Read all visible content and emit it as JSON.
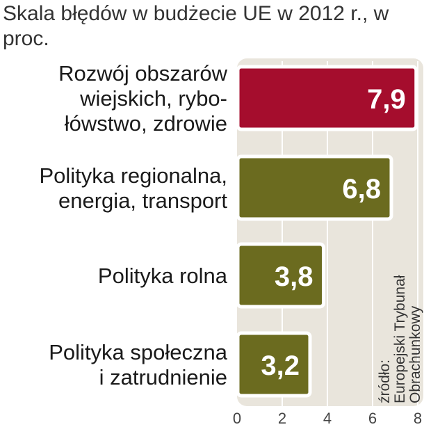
{
  "chart_data": {
    "type": "bar",
    "orientation": "horizontal",
    "title": "Skala błędów w budżecie UE w 2012 r., w proc.",
    "categories": [
      [
        "Rozwój obszarów",
        "wiejskich, rybo-",
        "łówstwo, zdrowie"
      ],
      [
        "Polityka regionalna,",
        "energia, transport"
      ],
      [
        "Polityka rolna"
      ],
      [
        "Polityka społeczna",
        "i zatrudnienie"
      ]
    ],
    "values": [
      7.9,
      6.8,
      3.8,
      3.2
    ],
    "value_labels": [
      "7,9",
      "6,8",
      "3,8",
      "3,2"
    ],
    "bar_colors": [
      "#a50d2d",
      "#6b6b1f",
      "#6b6b1f",
      "#6b6b1f"
    ],
    "xlim": [
      0,
      8
    ],
    "xticks": [
      0,
      2,
      4,
      6,
      8
    ],
    "grid": true,
    "source": [
      "źródło:",
      "Europejski Trybunał",
      "Obrachunkowy"
    ]
  },
  "colors": {
    "plot_background": "#e9e5dc",
    "grid": "#ffffff",
    "bar_border": "#ffffff",
    "highlight": "#a50d2d",
    "default_bar": "#6b6b1f"
  }
}
